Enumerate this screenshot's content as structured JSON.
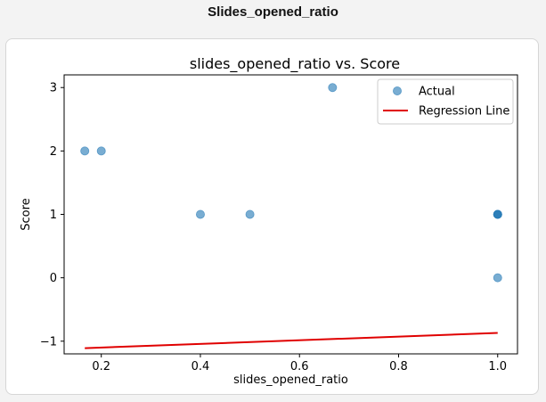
{
  "page": {
    "title": "Slides_opened_ratio"
  },
  "chart_data": {
    "type": "scatter",
    "title": "slides_opened_ratio vs. Score",
    "xlabel": "slides_opened_ratio",
    "ylabel": "Score",
    "xlim": [
      0.125,
      1.04
    ],
    "ylim": [
      -1.2,
      3.2
    ],
    "xticks": [
      0.2,
      0.4,
      0.6,
      0.8,
      1.0
    ],
    "xtick_labels": [
      "0.2",
      "0.4",
      "0.6",
      "0.8",
      "1.0"
    ],
    "yticks": [
      -1,
      0,
      1,
      2,
      3
    ],
    "ytick_labels": [
      "−1",
      "0",
      "1",
      "2",
      "3"
    ],
    "grid": false,
    "legend_position": "upper right",
    "series": [
      {
        "name": "Actual",
        "kind": "scatter",
        "color": "#1f77b4",
        "points": [
          [
            0.1667,
            2
          ],
          [
            0.2,
            2
          ],
          [
            0.4,
            1
          ],
          [
            0.5,
            1
          ],
          [
            0.6667,
            3
          ],
          [
            1.0,
            1
          ],
          [
            1.0,
            1
          ],
          [
            1.0,
            1
          ],
          [
            1.0,
            0
          ]
        ]
      },
      {
        "name": "Regression Line",
        "kind": "line",
        "color": "#e00000",
        "x": [
          0.1667,
          1.0
        ],
        "y": [
          -1.11,
          -0.87
        ]
      }
    ]
  }
}
